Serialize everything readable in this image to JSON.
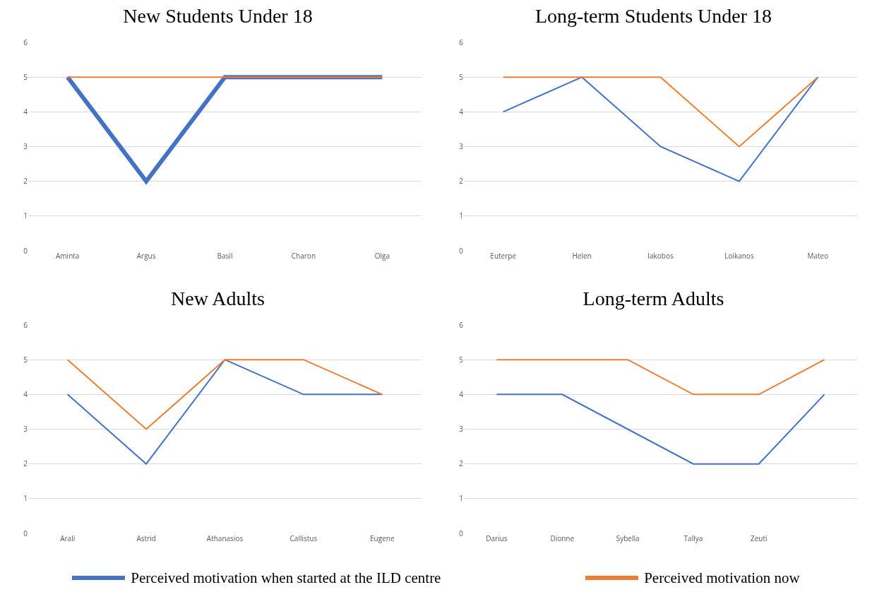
{
  "chart_data": [
    {
      "type": "line",
      "title": "New Students Under 18",
      "categories": [
        "Aminta",
        "Argus",
        "Basil",
        "Charon",
        "Olga"
      ],
      "series": [
        {
          "color": "#4472c4",
          "values": [
            5,
            2,
            5,
            5,
            5
          ]
        },
        {
          "color": "#ed7d31",
          "values": [
            5,
            5,
            5,
            5,
            5
          ]
        }
      ],
      "ylim": [
        0,
        6
      ],
      "yticks": [
        0,
        1,
        2,
        3,
        4,
        5,
        6
      ],
      "grid": "y",
      "marker": "none",
      "line_style": "solid"
    },
    {
      "type": "line",
      "title": "Long-term Students Under 18",
      "categories": [
        "Euterpe",
        "Helen",
        "Iakobos",
        "Loikanos",
        "Mateo"
      ],
      "series": [
        {
          "color": "#4472c4",
          "values": [
            4,
            5,
            3,
            2,
            5
          ]
        },
        {
          "color": "#ed7d31",
          "values": [
            5,
            5,
            5,
            3,
            5
          ]
        }
      ],
      "ylim": [
        0,
        6
      ],
      "yticks": [
        0,
        1,
        2,
        3,
        4,
        5,
        6
      ],
      "grid": "y",
      "marker": "none",
      "line_style": "solid"
    },
    {
      "type": "line",
      "title": "New Adults",
      "categories": [
        "Arali",
        "Astrid",
        "Athanasios",
        "Callistus",
        "Eugene"
      ],
      "series": [
        {
          "name": "Perceived motivation when started at the ILD centre",
          "color": "#4472c4",
          "values": [
            4,
            2,
            5,
            4,
            4
          ]
        },
        {
          "name": "Perceived motivation now",
          "color": "#ed7d31",
          "values": [
            5,
            3,
            5,
            5,
            4
          ]
        }
      ],
      "ylim": [
        0,
        6
      ],
      "yticks": [
        0,
        1,
        2,
        3,
        4,
        5,
        6
      ],
      "grid": "y",
      "marker": "none",
      "line_style": "solid",
      "legend": "bottom"
    },
    {
      "type": "line",
      "title": "Long-term Adults",
      "categories": [
        "Darius",
        "Dionne",
        "Sybella",
        "Tallya",
        "Zeuti",
        null
      ],
      "series": [
        {
          "color": "#4472c4",
          "values": [
            4,
            4,
            3,
            2,
            2,
            4
          ]
        },
        {
          "color": "#ed7d31",
          "values": [
            5,
            5,
            5,
            4,
            4,
            5
          ]
        }
      ],
      "ylim": [
        0,
        6
      ],
      "yticks": [
        0,
        1,
        2,
        3,
        4,
        5,
        6
      ],
      "grid": "y",
      "marker": "none",
      "line_style": "solid"
    }
  ]
}
